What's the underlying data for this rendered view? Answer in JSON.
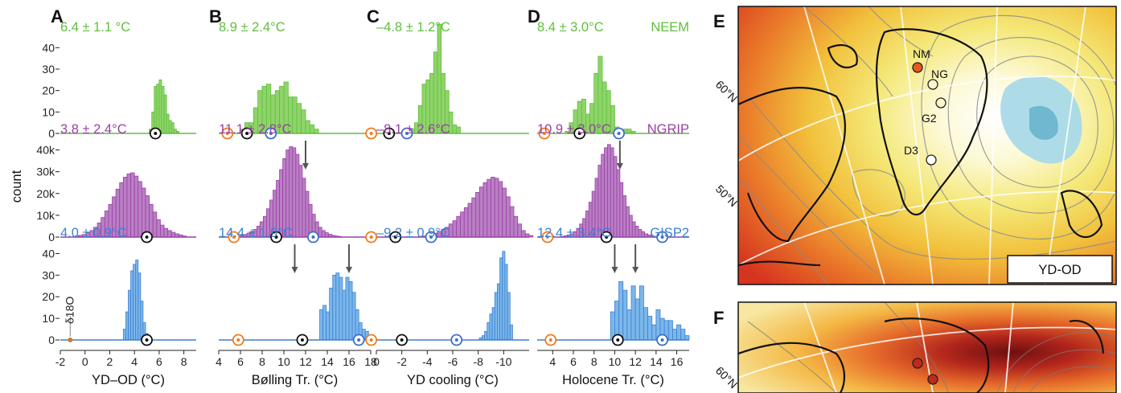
{
  "figure": {
    "ylabel": "count",
    "map_label_e": "YD-OD",
    "lat_60": "60°N",
    "lat_50": "50°N",
    "site_nm": "NM",
    "site_ng": "NG",
    "site_g2": "G2",
    "site_d3": "D3",
    "d18o_label": "δ18O",
    "colors": {
      "NEEM": "#5fbf3c",
      "NGRIP": "#9a3fa6",
      "GISP2": "#3d7fd1",
      "orange": "#ef7a1f",
      "blue_ring": "#3d6fc9",
      "black": "#111111",
      "arrow": "#555555"
    }
  },
  "panels": [
    {
      "letter": "A",
      "xlabel": "YD–OD (°C)",
      "xlim": [
        -2,
        9
      ],
      "ticks": [
        -2,
        0,
        2,
        4,
        6,
        8
      ],
      "stats": [
        "6.4 ± 1.1 °C",
        "3.8 ± 2.4°C",
        "4.0 ± 0.9°C"
      ],
      "cores": [
        "",
        "",
        ""
      ],
      "markers": [
        {
          "black": 5.7
        },
        {
          "black": 5.0
        },
        {
          "black": 5.0,
          "orange_small": -1.2
        }
      ],
      "arrows": [
        [],
        [],
        []
      ]
    },
    {
      "letter": "B",
      "xlabel": "Bølling Tr. (°C)",
      "xlim": [
        4,
        18
      ],
      "ticks": [
        4,
        6,
        8,
        10,
        12,
        14,
        16,
        18
      ],
      "stats": [
        "8.9 ± 2.4°C",
        "11.1 ± 2.8°C",
        "14.4 ± 1.9°C"
      ],
      "cores": [
        "",
        "",
        ""
      ],
      "markers": [
        {
          "orange": 4.8,
          "black": 6.6,
          "blue": 8.8
        },
        {
          "orange": 5.4,
          "black": 9.3,
          "blue": 12.7
        },
        {
          "orange": 5.8,
          "black": 11.7,
          "blue": 16.9
        }
      ],
      "arrows": [
        [],
        [
          12.0
        ],
        [
          11.0,
          16.0
        ]
      ]
    },
    {
      "letter": "C",
      "xlabel": "YD cooling (°C)",
      "xlim": [
        0,
        -12
      ],
      "ticks": [
        0,
        -2,
        -4,
        -6,
        -8,
        -10
      ],
      "stats": [
        "–4.8 ± 1.2°C",
        "–8.1 ± 2.6°C",
        "–9.2 ± 0.9°C"
      ],
      "cores": [
        "",
        "",
        ""
      ],
      "markers": [
        {
          "orange": 0.4,
          "black": -1.0,
          "blue": -2.4
        },
        {
          "orange": 0.4,
          "black": -1.5,
          "blue": -4.3
        },
        {
          "orange": 0.4,
          "black": -2.0,
          "blue": -6.3
        }
      ],
      "arrows": [
        [],
        [],
        []
      ]
    },
    {
      "letter": "D",
      "xlabel": "Holocene Tr. (°C)",
      "xlim": [
        2.5,
        17.2
      ],
      "ticks": [
        4,
        6,
        8,
        10,
        12,
        14,
        16
      ],
      "stats": [
        "8.4 ± 3.0°C",
        "10.9 ± 3.0°C",
        "12.4 ± 3.4°C"
      ],
      "cores": [
        "NEEM",
        "NGRIP",
        "GISP2"
      ],
      "markers": [
        {
          "orange": 3.2,
          "black": 6.6,
          "blue": 10.4
        },
        {
          "orange": 3.5,
          "black": 9.2,
          "blue": 14.6
        },
        {
          "orange": 3.8,
          "black": 10.3,
          "blue": 14.6
        }
      ],
      "arrows": [
        [],
        [
          10.5
        ],
        [
          10.0,
          12.0
        ]
      ]
    }
  ],
  "chart_data": {
    "type": "bar",
    "title": "",
    "ylabel": "count",
    "rows": [
      "NEEM",
      "NGRIP",
      "GISP2"
    ],
    "row_ylim": [
      [
        0,
        45
      ],
      [
        0,
        45000
      ],
      [
        0,
        45
      ]
    ],
    "row_yticks": [
      [
        "0",
        "10",
        "20",
        "30",
        "40"
      ],
      [
        "0",
        "10k",
        "20k",
        "30k",
        "40k"
      ],
      [
        "0",
        "10",
        "20",
        "30",
        "40"
      ]
    ],
    "histograms": [
      {
        "panel": "A",
        "bins": [
          {
            "x0": 5.2,
            "dx": 0.2,
            "counts": [
              2,
              10,
              22,
              23,
              25,
              22,
              18,
              9,
              6,
              5,
              2,
              1
            ]
          },
          {
            "x0": -0.8,
            "dx": 0.3,
            "counts": [
              0.5,
              0.8,
              1.2,
              2,
              3,
              4.5,
              6.5,
              9,
              12,
              15,
              18.5,
              22,
              25,
              27.5,
              29,
              29.5,
              28,
              25.5,
              22.5,
              19,
              15,
              11.5,
              8,
              5.5,
              4,
              3,
              2.2,
              1.5,
              1,
              0.5
            ]
          },
          {
            "x0": 3.1,
            "dx": 0.2,
            "counts": [
              5,
              13,
              23,
              32,
              35,
              37,
              31,
              18,
              8,
              3,
              2
            ]
          }
        ]
      },
      {
        "panel": "B",
        "bins": [
          {
            "x0": 6.0,
            "dx": 0.4,
            "counts": [
              2,
              5,
              5,
              12,
              20,
              22,
              23,
              18,
              20,
              22,
              24,
              17,
              17,
              14,
              11,
              6,
              4,
              2
            ]
          },
          {
            "x0": 5.4,
            "dx": 0.3,
            "counts": [
              0.3,
              0.5,
              0.8,
              1.2,
              1.8,
              2.5,
              3.5,
              5,
              7,
              9.5,
              13,
              17,
              21.5,
              26,
              31,
              36,
              40,
              41.5,
              41,
              38,
              33,
              27,
              21,
              15,
              10.5,
              7,
              4.5,
              3,
              2,
              1.3,
              0.8,
              0.5,
              0.3
            ]
          },
          {
            "x0": 13.3,
            "dx": 0.3,
            "counts": [
              14,
              16,
              13,
              24,
              30,
              31,
              29,
              23,
              29,
              27,
              22,
              14,
              8,
              5,
              4,
              2
            ]
          }
        ]
      },
      {
        "panel": "C",
        "bins": [
          {
            "x0": -2.7,
            "dx": -0.3,
            "counts": [
              2,
              5,
              13,
              23,
              25,
              28,
              38,
              51,
              28,
              20,
              10,
              4,
              3
            ]
          },
          {
            "x0": -3.3,
            "dx": -0.3,
            "counts": [
              0.3,
              0.5,
              0.8,
              1.2,
              1.8,
              2.5,
              3.5,
              4.5,
              6,
              7.5,
              9.5,
              11.5,
              13.5,
              15.5,
              18,
              20.5,
              23,
              25,
              26.5,
              27.5,
              27,
              25.5,
              22.5,
              18.5,
              14,
              9.5,
              6,
              3,
              1.5,
              0.7
            ]
          },
          {
            "x0": -8.1,
            "dx": -0.2,
            "counts": [
              1,
              2,
              4,
              8,
              12,
              15,
              22,
              26,
              38,
              41,
              35,
              22,
              7
            ]
          }
        ]
      },
      {
        "panel": "D",
        "bins": [
          {
            "x0": 5.2,
            "dx": 0.4,
            "counts": [
              1,
              5,
              11,
              15,
              16,
              9,
              14,
              28,
              36,
              24,
              20,
              13,
              3,
              2,
              2,
              2,
              1
            ]
          },
          {
            "x0": 4.8,
            "dx": 0.3,
            "counts": [
              0.3,
              0.6,
              1,
              1.5,
              2.5,
              4,
              6,
              8.5,
              12,
              16,
              21,
              27,
              33,
              38,
              41,
              42.5,
              41,
              37,
              31,
              25,
              19,
              14,
              10,
              7,
              5,
              3.5,
              2.5,
              1.5,
              1,
              0.5
            ]
          },
          {
            "x0": 9.6,
            "dx": 0.4,
            "counts": [
              13,
              18,
              27,
              23,
              14,
              25,
              19,
              25,
              15,
              11,
              7,
              14,
              10,
              9,
              9,
              5,
              7,
              5,
              2
            ]
          }
        ]
      }
    ]
  }
}
